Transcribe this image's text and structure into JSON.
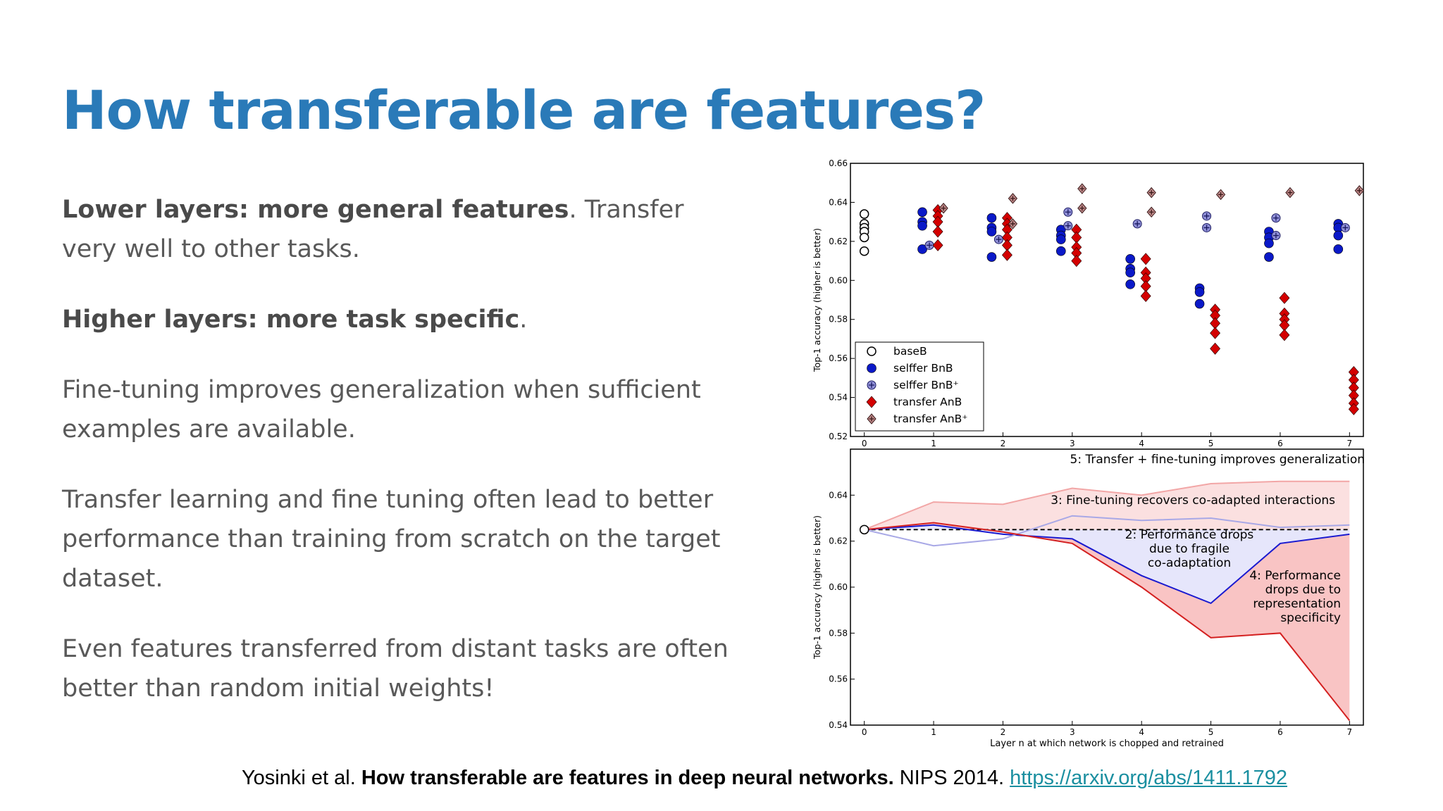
{
  "slide": {
    "title": "How transferable are features?",
    "paragraphs": [
      {
        "bold": "Lower layers: more general features",
        "rest": ". Transfer very well to other tasks."
      },
      {
        "bold": "Higher layers: more task specific",
        "rest": "."
      },
      {
        "bold": "",
        "rest": "Fine-tuning improves generalization when sufficient examples are available."
      },
      {
        "bold": "",
        "rest": "Transfer learning and fine tuning often lead to better performance than training from scratch on the target dataset."
      },
      {
        "bold": "",
        "rest": "Even features transferred from distant tasks are often better than random initial weights!"
      }
    ],
    "citation": {
      "authors": "Yosinki et al. ",
      "paper": "How transferable are features in deep neural networks.",
      "venue": " NIPS 2014. ",
      "link": "https://arxiv.org/abs/1411.1792"
    },
    "colors": {
      "title": "#2a7ab8",
      "body": "#595959",
      "link": "#1a8fa0"
    }
  },
  "chart_data": [
    {
      "type": "scatter",
      "ylabel": "Top-1 accuracy (higher is better)",
      "xlim": [
        -0.2,
        7.2
      ],
      "ylim": [
        0.52,
        0.66
      ],
      "x_ticks": [
        "0",
        "1",
        "2",
        "3",
        "4",
        "5",
        "6",
        "7"
      ],
      "y_ticks": [
        "0.52",
        "0.54",
        "0.56",
        "0.58",
        "0.60",
        "0.62",
        "0.64",
        "0.66"
      ],
      "legend_position": "lower-left",
      "series": [
        {
          "name": "baseB",
          "marker": "open-circle",
          "color": "#000000",
          "points": [
            [
              0,
              0.634
            ],
            [
              0,
              0.629
            ],
            [
              0,
              0.627
            ],
            [
              0,
              0.625
            ],
            [
              0,
              0.622
            ],
            [
              0,
              0.615
            ]
          ]
        },
        {
          "name": "selffer BnB",
          "marker": "circle",
          "color": "#0a19c8",
          "points": [
            [
              1,
              0.635
            ],
            [
              1,
              0.63
            ],
            [
              1,
              0.628
            ],
            [
              1,
              0.616
            ],
            [
              2,
              0.632
            ],
            [
              2,
              0.627
            ],
            [
              2,
              0.625
            ],
            [
              2,
              0.612
            ],
            [
              3,
              0.626
            ],
            [
              3,
              0.623
            ],
            [
              3,
              0.621
            ],
            [
              3,
              0.615
            ],
            [
              4,
              0.611
            ],
            [
              4,
              0.606
            ],
            [
              4,
              0.604
            ],
            [
              4,
              0.598
            ],
            [
              5,
              0.596
            ],
            [
              5,
              0.594
            ],
            [
              5,
              0.588
            ],
            [
              6,
              0.625
            ],
            [
              6,
              0.622
            ],
            [
              6,
              0.619
            ],
            [
              6,
              0.612
            ],
            [
              7,
              0.629
            ],
            [
              7,
              0.627
            ],
            [
              7,
              0.623
            ],
            [
              7,
              0.616
            ]
          ]
        },
        {
          "name": "selffer BnB⁺",
          "marker": "circle-plus",
          "color": "#8f8fd6",
          "points": [
            [
              1,
              0.618
            ],
            [
              2,
              0.621
            ],
            [
              3,
              0.635
            ],
            [
              3,
              0.628
            ],
            [
              4,
              0.629
            ],
            [
              5,
              0.633
            ],
            [
              5,
              0.627
            ],
            [
              6,
              0.632
            ],
            [
              6,
              0.623
            ],
            [
              7,
              0.627
            ]
          ]
        },
        {
          "name": "transfer AnB",
          "marker": "diamond",
          "color": "#d40000",
          "points": [
            [
              1,
              0.636
            ],
            [
              1,
              0.633
            ],
            [
              1,
              0.63
            ],
            [
              1,
              0.625
            ],
            [
              1,
              0.618
            ],
            [
              2,
              0.632
            ],
            [
              2,
              0.629
            ],
            [
              2,
              0.626
            ],
            [
              2,
              0.622
            ],
            [
              2,
              0.618
            ],
            [
              2,
              0.613
            ],
            [
              3,
              0.626
            ],
            [
              3,
              0.622
            ],
            [
              3,
              0.617
            ],
            [
              3,
              0.614
            ],
            [
              3,
              0.61
            ],
            [
              4,
              0.611
            ],
            [
              4,
              0.604
            ],
            [
              4,
              0.601
            ],
            [
              4,
              0.597
            ],
            [
              4,
              0.592
            ],
            [
              5,
              0.585
            ],
            [
              5,
              0.582
            ],
            [
              5,
              0.578
            ],
            [
              5,
              0.573
            ],
            [
              5,
              0.565
            ],
            [
              6,
              0.591
            ],
            [
              6,
              0.583
            ],
            [
              6,
              0.58
            ],
            [
              6,
              0.577
            ],
            [
              6,
              0.572
            ],
            [
              7,
              0.553
            ],
            [
              7,
              0.549
            ],
            [
              7,
              0.545
            ],
            [
              7,
              0.541
            ],
            [
              7,
              0.537
            ],
            [
              7,
              0.534
            ]
          ]
        },
        {
          "name": "transfer AnB⁺",
          "marker": "diamond-plus",
          "color": "#c08a8a",
          "points": [
            [
              1,
              0.637
            ],
            [
              2,
              0.642
            ],
            [
              2,
              0.629
            ],
            [
              3,
              0.647
            ],
            [
              3,
              0.637
            ],
            [
              4,
              0.645
            ],
            [
              4,
              0.635
            ],
            [
              5,
              0.644
            ],
            [
              6,
              0.645
            ],
            [
              7,
              0.646
            ]
          ]
        }
      ]
    },
    {
      "type": "line",
      "xlabel": "Layer n at which network is chopped and retrained",
      "ylabel": "Top-1 accuracy (higher is better)",
      "xlim": [
        -0.2,
        7.2
      ],
      "ylim": [
        0.54,
        0.66
      ],
      "x_ticks": [
        "0",
        "1",
        "2",
        "3",
        "4",
        "5",
        "6",
        "7"
      ],
      "y_ticks": [
        "0.54",
        "0.56",
        "0.58",
        "0.60",
        "0.62",
        "0.64"
      ],
      "x": [
        0,
        1,
        2,
        3,
        4,
        5,
        6,
        7
      ],
      "series": [
        {
          "name": "baseB",
          "values": [
            0.625,
            0.625,
            0.625,
            0.625,
            0.625,
            0.625,
            0.625,
            0.625
          ],
          "color": "#000000",
          "style": "dashed"
        },
        {
          "name": "selffer BnB",
          "values": [
            0.625,
            0.627,
            0.623,
            0.621,
            0.605,
            0.593,
            0.619,
            0.623
          ],
          "color": "#1a1ad0"
        },
        {
          "name": "selffer BnB⁺",
          "values": [
            0.625,
            0.618,
            0.621,
            0.631,
            0.629,
            0.63,
            0.626,
            0.627
          ],
          "color": "#a8a8e6"
        },
        {
          "name": "transfer AnB",
          "values": [
            0.625,
            0.628,
            0.624,
            0.619,
            0.6,
            0.578,
            0.58,
            0.542
          ],
          "color": "#d42020"
        },
        {
          "name": "transfer AnB⁺",
          "values": [
            0.625,
            0.637,
            0.636,
            0.643,
            0.64,
            0.645,
            0.646,
            0.646
          ],
          "color": "#f2a6a6"
        }
      ],
      "annotations": [
        "5: Transfer + fine-tuning improves generalization",
        "3: Fine-tuning recovers co-adapted interactions",
        "2: Performance drops due to fragile co-adaptation",
        "4: Performance drops due to representation specificity"
      ]
    }
  ]
}
